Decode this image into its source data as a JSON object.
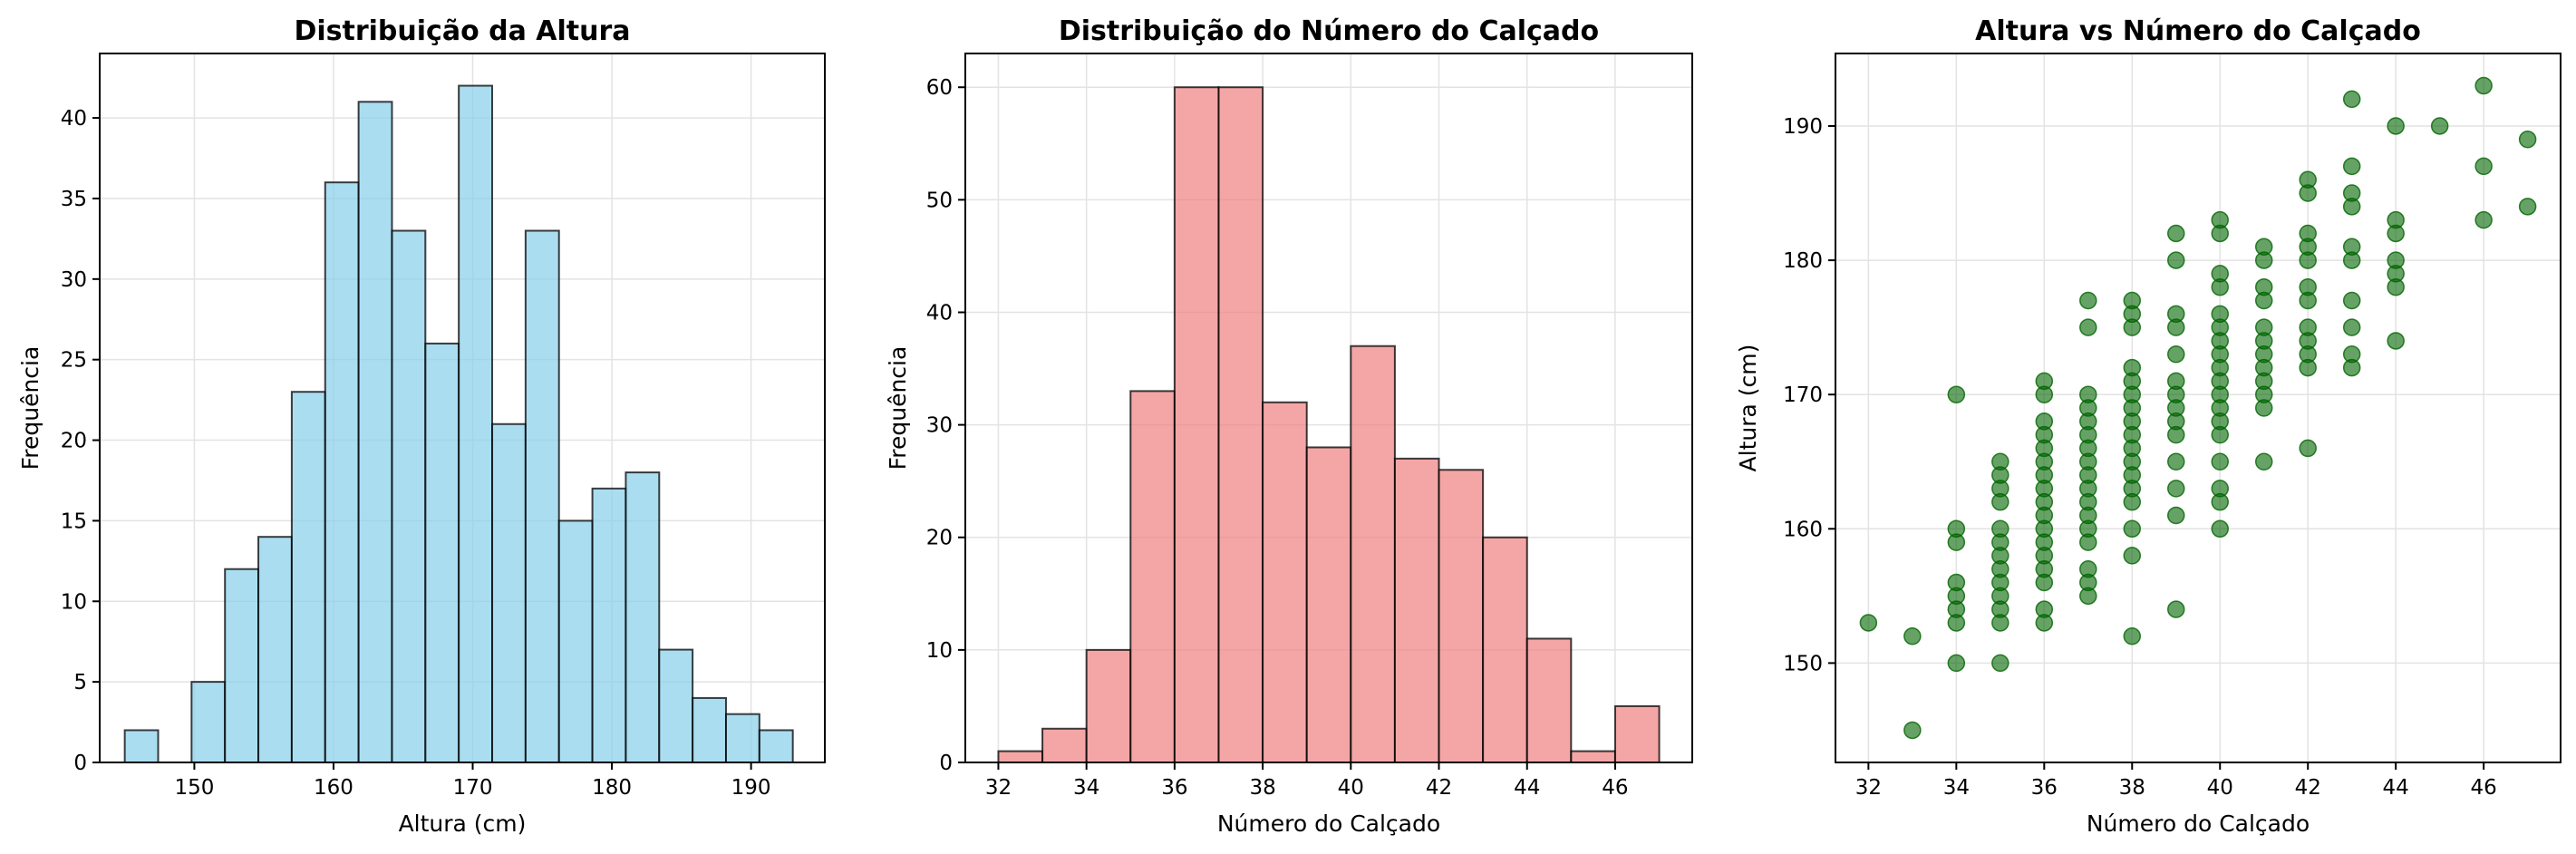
{
  "chart_data": [
    {
      "type": "bar",
      "variant": "histogram",
      "title": "Distribuição da Altura",
      "xlabel": "Altura (cm)",
      "ylabel": "Frequência",
      "xlim": [
        143.2,
        195.3
      ],
      "ylim": [
        0,
        44
      ],
      "xticks": [
        150,
        160,
        170,
        180,
        190
      ],
      "yticks": [
        0,
        5,
        10,
        15,
        20,
        25,
        30,
        35,
        40
      ],
      "bins": [
        {
          "x0": 145.0,
          "x1": 147.4,
          "value": 2
        },
        {
          "x0": 147.4,
          "x1": 149.8,
          "value": 0
        },
        {
          "x0": 149.8,
          "x1": 152.2,
          "value": 5
        },
        {
          "x0": 152.2,
          "x1": 154.6,
          "value": 12
        },
        {
          "x0": 154.6,
          "x1": 157.0,
          "value": 14
        },
        {
          "x0": 157.0,
          "x1": 159.4,
          "value": 23
        },
        {
          "x0": 159.4,
          "x1": 161.8,
          "value": 36
        },
        {
          "x0": 161.8,
          "x1": 164.2,
          "value": 41
        },
        {
          "x0": 164.2,
          "x1": 166.6,
          "value": 33
        },
        {
          "x0": 166.6,
          "x1": 169.0,
          "value": 26
        },
        {
          "x0": 169.0,
          "x1": 171.4,
          "value": 42
        },
        {
          "x0": 171.4,
          "x1": 173.8,
          "value": 21
        },
        {
          "x0": 173.8,
          "x1": 176.2,
          "value": 33
        },
        {
          "x0": 176.2,
          "x1": 178.6,
          "value": 15
        },
        {
          "x0": 178.6,
          "x1": 181.0,
          "value": 17
        },
        {
          "x0": 181.0,
          "x1": 183.4,
          "value": 18
        },
        {
          "x0": 183.4,
          "x1": 185.8,
          "value": 7
        },
        {
          "x0": 185.8,
          "x1": 188.2,
          "value": 4
        },
        {
          "x0": 188.2,
          "x1": 190.6,
          "value": 3
        },
        {
          "x0": 190.6,
          "x1": 193.0,
          "value": 2
        }
      ],
      "grid": true,
      "color": "#87CEEB"
    },
    {
      "type": "bar",
      "variant": "histogram",
      "title": "Distribuição do Número do Calçado",
      "xlabel": "Número do Calçado",
      "ylabel": "Frequência",
      "xlim": [
        31.25,
        47.75
      ],
      "ylim": [
        0,
        63
      ],
      "xticks": [
        32,
        34,
        36,
        38,
        40,
        42,
        44,
        46
      ],
      "yticks": [
        0,
        10,
        20,
        30,
        40,
        50,
        60
      ],
      "bins": [
        {
          "x0": 32,
          "x1": 33,
          "value": 1
        },
        {
          "x0": 33,
          "x1": 34,
          "value": 3
        },
        {
          "x0": 34,
          "x1": 35,
          "value": 10
        },
        {
          "x0": 35,
          "x1": 36,
          "value": 33
        },
        {
          "x0": 36,
          "x1": 37,
          "value": 60
        },
        {
          "x0": 37,
          "x1": 38,
          "value": 60
        },
        {
          "x0": 38,
          "x1": 39,
          "value": 32
        },
        {
          "x0": 39,
          "x1": 40,
          "value": 28
        },
        {
          "x0": 40,
          "x1": 41,
          "value": 37
        },
        {
          "x0": 41,
          "x1": 42,
          "value": 27
        },
        {
          "x0": 42,
          "x1": 43,
          "value": 26
        },
        {
          "x0": 43,
          "x1": 44,
          "value": 20
        },
        {
          "x0": 44,
          "x1": 45,
          "value": 11
        },
        {
          "x0": 45,
          "x1": 46,
          "value": 1
        },
        {
          "x0": 46,
          "x1": 47,
          "value": 5
        }
      ],
      "grid": true,
      "color": "#F08080"
    },
    {
      "type": "scatter",
      "title": "Altura vs Número do Calçado",
      "xlabel": "Número do Calçado",
      "ylabel": "Altura (cm)",
      "xlim": [
        31.25,
        47.75
      ],
      "ylim": [
        142.6,
        195.4
      ],
      "xticks": [
        32,
        34,
        36,
        38,
        40,
        42,
        44,
        46
      ],
      "yticks": [
        150,
        160,
        170,
        180,
        190
      ],
      "points": [
        [
          32,
          153
        ],
        [
          33,
          152
        ],
        [
          33,
          145
        ],
        [
          34,
          170
        ],
        [
          34,
          160
        ],
        [
          34,
          159
        ],
        [
          34,
          156
        ],
        [
          34,
          155
        ],
        [
          34,
          154
        ],
        [
          34,
          153
        ],
        [
          34,
          150
        ],
        [
          35,
          165
        ],
        [
          35,
          164
        ],
        [
          35,
          163
        ],
        [
          35,
          162
        ],
        [
          35,
          160
        ],
        [
          35,
          159
        ],
        [
          35,
          158
        ],
        [
          35,
          157
        ],
        [
          35,
          156
        ],
        [
          35,
          155
        ],
        [
          35,
          154
        ],
        [
          35,
          153
        ],
        [
          35,
          150
        ],
        [
          36,
          171
        ],
        [
          36,
          170
        ],
        [
          36,
          168
        ],
        [
          36,
          167
        ],
        [
          36,
          166
        ],
        [
          36,
          165
        ],
        [
          36,
          164
        ],
        [
          36,
          163
        ],
        [
          36,
          162
        ],
        [
          36,
          161
        ],
        [
          36,
          160
        ],
        [
          36,
          159
        ],
        [
          36,
          158
        ],
        [
          36,
          157
        ],
        [
          36,
          156
        ],
        [
          36,
          154
        ],
        [
          36,
          153
        ],
        [
          37,
          177
        ],
        [
          37,
          175
        ],
        [
          37,
          170
        ],
        [
          37,
          169
        ],
        [
          37,
          168
        ],
        [
          37,
          167
        ],
        [
          37,
          166
        ],
        [
          37,
          165
        ],
        [
          37,
          164
        ],
        [
          37,
          163
        ],
        [
          37,
          162
        ],
        [
          37,
          161
        ],
        [
          37,
          160
        ],
        [
          37,
          159
        ],
        [
          37,
          157
        ],
        [
          37,
          156
        ],
        [
          37,
          155
        ],
        [
          38,
          177
        ],
        [
          38,
          176
        ],
        [
          38,
          175
        ],
        [
          38,
          172
        ],
        [
          38,
          171
        ],
        [
          38,
          170
        ],
        [
          38,
          169
        ],
        [
          38,
          168
        ],
        [
          38,
          167
        ],
        [
          38,
          166
        ],
        [
          38,
          165
        ],
        [
          38,
          164
        ],
        [
          38,
          163
        ],
        [
          38,
          162
        ],
        [
          38,
          160
        ],
        [
          38,
          158
        ],
        [
          38,
          152
        ],
        [
          39,
          182
        ],
        [
          39,
          180
        ],
        [
          39,
          176
        ],
        [
          39,
          175
        ],
        [
          39,
          173
        ],
        [
          39,
          171
        ],
        [
          39,
          170
        ],
        [
          39,
          169
        ],
        [
          39,
          168
        ],
        [
          39,
          167
        ],
        [
          39,
          165
        ],
        [
          39,
          163
        ],
        [
          39,
          161
        ],
        [
          39,
          154
        ],
        [
          40,
          183
        ],
        [
          40,
          182
        ],
        [
          40,
          179
        ],
        [
          40,
          178
        ],
        [
          40,
          176
        ],
        [
          40,
          175
        ],
        [
          40,
          174
        ],
        [
          40,
          173
        ],
        [
          40,
          172
        ],
        [
          40,
          171
        ],
        [
          40,
          170
        ],
        [
          40,
          169
        ],
        [
          40,
          168
        ],
        [
          40,
          167
        ],
        [
          40,
          165
        ],
        [
          40,
          163
        ],
        [
          40,
          162
        ],
        [
          40,
          160
        ],
        [
          41,
          181
        ],
        [
          41,
          180
        ],
        [
          41,
          178
        ],
        [
          41,
          177
        ],
        [
          41,
          175
        ],
        [
          41,
          174
        ],
        [
          41,
          173
        ],
        [
          41,
          172
        ],
        [
          41,
          171
        ],
        [
          41,
          170
        ],
        [
          41,
          169
        ],
        [
          41,
          165
        ],
        [
          42,
          186
        ],
        [
          42,
          185
        ],
        [
          42,
          182
        ],
        [
          42,
          181
        ],
        [
          42,
          180
        ],
        [
          42,
          178
        ],
        [
          42,
          177
        ],
        [
          42,
          175
        ],
        [
          42,
          174
        ],
        [
          42,
          173
        ],
        [
          42,
          172
        ],
        [
          42,
          166
        ],
        [
          43,
          192
        ],
        [
          43,
          187
        ],
        [
          43,
          185
        ],
        [
          43,
          184
        ],
        [
          43,
          181
        ],
        [
          43,
          180
        ],
        [
          43,
          177
        ],
        [
          43,
          175
        ],
        [
          43,
          173
        ],
        [
          43,
          172
        ],
        [
          44,
          190
        ],
        [
          44,
          183
        ],
        [
          44,
          182
        ],
        [
          44,
          180
        ],
        [
          44,
          179
        ],
        [
          44,
          178
        ],
        [
          44,
          174
        ],
        [
          45,
          190
        ],
        [
          46,
          193
        ],
        [
          46,
          187
        ],
        [
          46,
          183
        ],
        [
          47,
          189
        ],
        [
          47,
          184
        ]
      ],
      "grid": true,
      "color": "#006400"
    }
  ]
}
